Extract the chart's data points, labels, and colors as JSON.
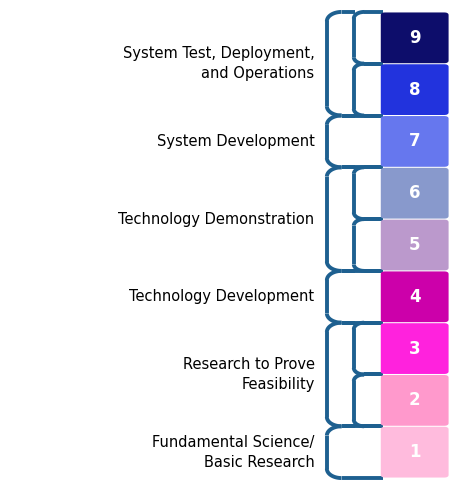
{
  "trl_levels": [
    9,
    8,
    7,
    6,
    5,
    4,
    3,
    2,
    1
  ],
  "colors": [
    "#0d0d6b",
    "#2233dd",
    "#6677ee",
    "#8899cc",
    "#bb99cc",
    "#cc00aa",
    "#ff22dd",
    "#ff99cc",
    "#ffbbdd"
  ],
  "bracket_color": "#1e6090",
  "bg_color": "#ffffff",
  "text_color": "#000000",
  "box_text_color": "#ffffff",
  "font_size_label": 10.5,
  "font_size_number": 12,
  "xlim": [
    -4.5,
    1.2
  ],
  "ylim": [
    -0.15,
    9.15
  ]
}
